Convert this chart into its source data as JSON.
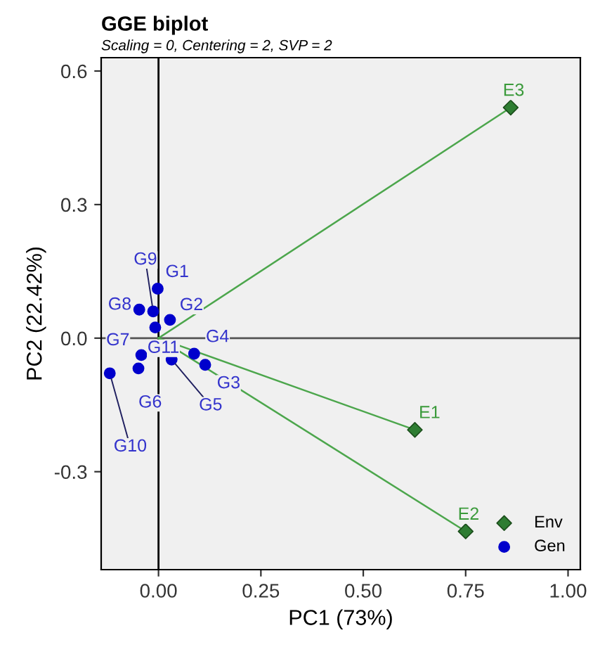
{
  "chart_data": {
    "type": "scatter",
    "title": "GGE biplot",
    "subtitle": "Scaling = 0, Centering = 2, SVP = 2",
    "xlabel": "PC1 (73%)",
    "ylabel": "PC2 (22.42%)",
    "xlim": [
      -0.14,
      1.03
    ],
    "ylim": [
      -0.52,
      0.63
    ],
    "xticks": [
      {
        "value": 0,
        "label": "0.00"
      },
      0.25,
      {
        "value": 0.5,
        "label": "0.50"
      },
      0.75,
      {
        "value": 1,
        "label": "1.00"
      }
    ],
    "yticks": [
      -0.3,
      {
        "value": 0,
        "label": "0.0"
      },
      0.3,
      0.6
    ],
    "grid": false,
    "legend": "bottom right",
    "series": [
      {
        "type": "line",
        "color": "#4ca64c",
        "marker": "none",
        "x": [
          0,
          0.626
        ],
        "values": [
          0,
          -0.206
        ]
      },
      {
        "type": "line",
        "color": "#4ca64c",
        "marker": "none",
        "x": [
          0,
          0.75
        ],
        "values": [
          0,
          -0.434
        ]
      },
      {
        "type": "line",
        "color": "#4ca64c",
        "marker": "none",
        "x": [
          0,
          0.86
        ],
        "values": [
          0,
          0.518
        ]
      },
      {
        "name": "Env",
        "color": "#2e7d32",
        "marker": "diamond",
        "x": [
          0.626,
          0.75,
          0.86
        ],
        "values": [
          -0.206,
          -0.434,
          0.518
        ]
      },
      {
        "name": "Gen",
        "color": "#0000cc",
        "marker": "circle",
        "x": [
          -0.002,
          0.028,
          0.114,
          0.087,
          0.032,
          -0.049,
          -0.042,
          -0.047,
          -0.013,
          -0.119,
          -0.008
        ],
        "values": [
          0.111,
          0.041,
          -0.06,
          -0.035,
          -0.048,
          -0.068,
          -0.038,
          0.064,
          0.06,
          -0.079,
          0.024
        ]
      }
    ],
    "ref_lines": [
      {
        "axis": "x",
        "value": 0,
        "color": "#000000"
      },
      {
        "axis": "y",
        "value": 0,
        "color": "#555555"
      }
    ],
    "annotations": [
      {
        "text": "E1",
        "x": 0.626,
        "y": -0.206
      },
      {
        "text": "E2",
        "x": 0.75,
        "y": -0.434
      },
      {
        "text": "E3",
        "x": 0.86,
        "y": 0.518
      },
      {
        "text": "G1",
        "x": -0.002,
        "y": 0.111
      },
      {
        "text": "G2",
        "x": 0.028,
        "y": 0.041
      },
      {
        "text": "G3",
        "x": 0.114,
        "y": -0.06
      },
      {
        "text": "G4",
        "x": 0.087,
        "y": -0.035
      },
      {
        "text": "G5",
        "x": 0.032,
        "y": -0.048
      },
      {
        "text": "G6",
        "x": -0.049,
        "y": -0.068
      },
      {
        "text": "G7",
        "x": -0.042,
        "y": -0.038
      },
      {
        "text": "G8",
        "x": -0.047,
        "y": 0.064
      },
      {
        "text": "G9",
        "x": -0.013,
        "y": 0.06
      },
      {
        "text": "G10",
        "x": -0.119,
        "y": -0.079
      },
      {
        "text": "G11",
        "x": -0.008,
        "y": 0.024
      }
    ]
  }
}
